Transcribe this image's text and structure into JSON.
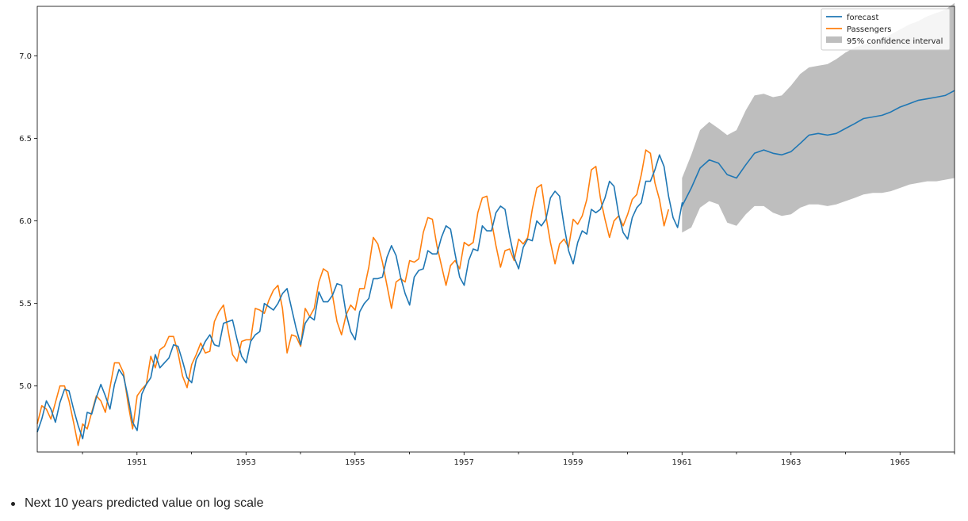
{
  "caption": "Next 10 years predicted value on log scale",
  "chart_data": {
    "type": "line",
    "xlim": [
      1949.17,
      1966.0
    ],
    "ylim": [
      4.6,
      7.3
    ],
    "x_ticks": [
      1951,
      1953,
      1955,
      1957,
      1959,
      1961,
      1963,
      1965
    ],
    "y_ticks": [
      5.0,
      5.5,
      6.0,
      6.5,
      7.0
    ],
    "x_tick_labels": [
      "1951",
      "1953",
      "1955",
      "1957",
      "1959",
      "1961",
      "1963",
      "1965"
    ],
    "y_tick_labels": [
      "5.0",
      "5.5",
      "6.0",
      "6.5",
      "7.0"
    ],
    "legend_position": "top-right",
    "grid": false,
    "colors": {
      "forecast": "#1f77b4",
      "passengers": "#ff7f0e",
      "ci": "#bebebe"
    },
    "legend": {
      "forecast": "forecast",
      "passengers": "Passengers",
      "ci": "95% confidence interval"
    },
    "passengers": {
      "x_start": 1949.17,
      "step": 0.08333,
      "values": [
        4.77,
        4.88,
        4.86,
        4.8,
        4.9,
        5.0,
        5.0,
        4.91,
        4.78,
        4.64,
        4.77,
        4.74,
        4.84,
        4.94,
        4.91,
        4.84,
        4.99,
        5.14,
        5.14,
        5.08,
        4.89,
        4.74,
        4.94,
        4.98,
        5.01,
        5.18,
        5.11,
        5.22,
        5.24,
        5.3,
        5.3,
        5.2,
        5.06,
        4.99,
        5.13,
        5.19,
        5.26,
        5.2,
        5.21,
        5.39,
        5.45,
        5.49,
        5.34,
        5.19,
        5.15,
        5.27,
        5.28,
        5.28,
        5.47,
        5.46,
        5.44,
        5.52,
        5.58,
        5.61,
        5.47,
        5.2,
        5.31,
        5.3,
        5.24,
        5.47,
        5.42,
        5.47,
        5.63,
        5.71,
        5.69,
        5.55,
        5.39,
        5.31,
        5.43,
        5.49,
        5.46,
        5.59,
        5.59,
        5.72,
        5.9,
        5.86,
        5.75,
        5.61,
        5.47,
        5.63,
        5.65,
        5.63,
        5.76,
        5.75,
        5.77,
        5.93,
        6.02,
        6.01,
        5.85,
        5.73,
        5.61,
        5.73,
        5.76,
        5.71,
        5.87,
        5.85,
        5.87,
        6.05,
        6.14,
        6.15,
        6.0,
        5.85,
        5.72,
        5.82,
        5.83,
        5.76,
        5.89,
        5.86,
        5.9,
        6.07,
        6.2,
        6.22,
        6.03,
        5.87,
        5.74,
        5.86,
        5.89,
        5.84,
        6.01,
        5.98,
        6.03,
        6.13,
        6.31,
        6.33,
        6.14,
        6.01,
        5.9,
        6.0,
        6.03,
        5.97,
        6.04,
        6.13,
        6.16,
        6.28,
        6.43,
        6.41,
        6.23,
        6.13,
        5.97,
        6.07
      ]
    },
    "forecast": {
      "x_start": 1949.17,
      "step": 0.08333,
      "values": [
        4.72,
        4.8,
        4.91,
        4.86,
        4.78,
        4.9,
        4.98,
        4.97,
        4.86,
        4.76,
        4.68,
        4.84,
        4.83,
        4.93,
        5.01,
        4.94,
        4.86,
        5.01,
        5.1,
        5.06,
        4.93,
        4.78,
        4.73,
        4.95,
        5.01,
        5.05,
        5.19,
        5.11,
        5.14,
        5.17,
        5.25,
        5.24,
        5.15,
        5.05,
        5.02,
        5.16,
        5.21,
        5.27,
        5.31,
        5.25,
        5.24,
        5.38,
        5.39,
        5.4,
        5.28,
        5.18,
        5.14,
        5.27,
        5.31,
        5.33,
        5.5,
        5.48,
        5.46,
        5.5,
        5.56,
        5.59,
        5.47,
        5.35,
        5.25,
        5.38,
        5.42,
        5.4,
        5.57,
        5.51,
        5.51,
        5.55,
        5.62,
        5.61,
        5.44,
        5.33,
        5.28,
        5.45,
        5.5,
        5.53,
        5.65,
        5.65,
        5.66,
        5.78,
        5.85,
        5.79,
        5.66,
        5.56,
        5.49,
        5.66,
        5.7,
        5.71,
        5.82,
        5.8,
        5.8,
        5.9,
        5.97,
        5.95,
        5.8,
        5.66,
        5.61,
        5.76,
        5.83,
        5.82,
        5.97,
        5.94,
        5.94,
        6.05,
        6.09,
        6.07,
        5.91,
        5.78,
        5.71,
        5.84,
        5.89,
        5.88,
        6.0,
        5.97,
        6.01,
        6.14,
        6.18,
        6.15,
        5.97,
        5.82,
        5.74,
        5.87,
        5.94,
        5.92,
        6.07,
        6.05,
        6.07,
        6.14,
        6.24,
        6.21,
        6.04,
        5.93,
        5.89,
        6.02,
        6.08,
        6.11,
        6.24,
        6.24,
        6.31,
        6.4,
        6.33,
        6.15,
        6.02,
        5.96,
        6.11
      ]
    },
    "forecast_future": {
      "x": [
        1961.0,
        1961.17,
        1961.33,
        1961.5,
        1961.67,
        1961.83,
        1962.0,
        1962.17,
        1962.33,
        1962.5,
        1962.67,
        1962.83,
        1963.0,
        1963.17,
        1963.33,
        1963.5,
        1963.67,
        1963.83,
        1964.0,
        1964.17,
        1964.33,
        1964.5,
        1964.67,
        1964.83,
        1965.0,
        1965.17,
        1965.33,
        1965.5,
        1965.67,
        1965.83,
        1966.0
      ],
      "values": [
        6.09,
        6.2,
        6.32,
        6.37,
        6.35,
        6.28,
        6.26,
        6.34,
        6.41,
        6.43,
        6.41,
        6.4,
        6.42,
        6.47,
        6.52,
        6.53,
        6.52,
        6.53,
        6.56,
        6.59,
        6.62,
        6.63,
        6.64,
        6.66,
        6.69,
        6.71,
        6.73,
        6.74,
        6.75,
        6.76,
        6.79
      ],
      "ci_upper": [
        6.26,
        6.4,
        6.55,
        6.6,
        6.56,
        6.52,
        6.55,
        6.67,
        6.76,
        6.77,
        6.75,
        6.76,
        6.82,
        6.89,
        6.93,
        6.94,
        6.95,
        6.98,
        7.02,
        7.05,
        7.07,
        7.08,
        7.1,
        7.13,
        7.16,
        7.19,
        7.21,
        7.24,
        7.26,
        7.28,
        7.32
      ],
      "ci_lower": [
        5.93,
        5.96,
        6.08,
        6.12,
        6.1,
        5.99,
        5.97,
        6.04,
        6.09,
        6.09,
        6.05,
        6.03,
        6.04,
        6.08,
        6.1,
        6.1,
        6.09,
        6.1,
        6.12,
        6.14,
        6.16,
        6.17,
        6.17,
        6.18,
        6.2,
        6.22,
        6.23,
        6.24,
        6.24,
        6.25,
        6.26
      ]
    }
  }
}
